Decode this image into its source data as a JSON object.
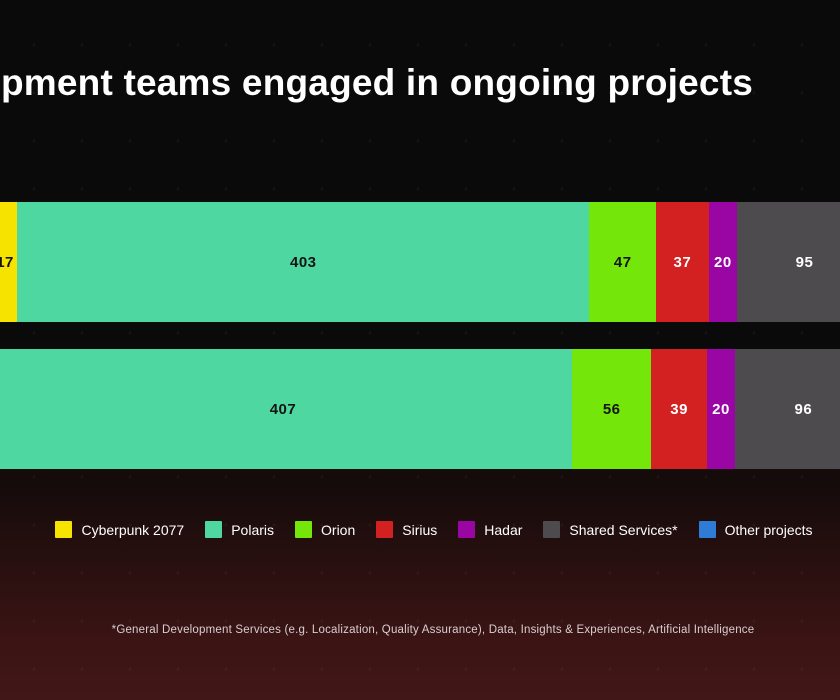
{
  "page": {
    "title": "pment teams engaged in ongoing projects",
    "footnote": "*General Development Services (e.g. Localization, Quality Assurance), Data, Insights & Experiences, Artificial Intelligence"
  },
  "colors": {
    "background_top": "#0a0a0a",
    "background_bottom": "#421717",
    "title_text": "#ffffff",
    "legend_text": "#ffffff",
    "footnote_text": "#d8cfcf"
  },
  "chart_data": {
    "type": "bar",
    "variant": "horizontal-stacked",
    "title": "pment teams engaged in ongoing projects",
    "legend_position": "bottom",
    "grid": false,
    "clipping_note": "Both stacked bars are clipped at the left and right edges of the visible area; the 'Other projects' series is visible only in the legend.",
    "series": [
      {
        "name": "Cyberpunk 2077",
        "color": "#f6e400",
        "label_color": "#141414"
      },
      {
        "name": "Polaris",
        "color": "#4fd7a2",
        "label_color": "#141414"
      },
      {
        "name": "Orion",
        "color": "#74e60a",
        "label_color": "#141414"
      },
      {
        "name": "Sirius",
        "color": "#d32021",
        "label_color": "#ffffff"
      },
      {
        "name": "Hadar",
        "color": "#9a06a3",
        "label_color": "#ffffff"
      },
      {
        "name": "Shared Services*",
        "color": "#4e4b4e",
        "label_color": "#ffffff"
      },
      {
        "name": "Other projects",
        "color": "#2e7cd6",
        "label_color": "#ffffff"
      }
    ],
    "bars": [
      {
        "segments": [
          {
            "series": "Cyberpunk 2077",
            "value": 17,
            "label": "17"
          },
          {
            "series": "Polaris",
            "value": 403,
            "label": "403"
          },
          {
            "series": "Orion",
            "value": 47,
            "label": "47"
          },
          {
            "series": "Sirius",
            "value": 37,
            "label": "37"
          },
          {
            "series": "Hadar",
            "value": 20,
            "label": "20"
          },
          {
            "series": "Shared Services*",
            "value": 95,
            "label": "95"
          }
        ]
      },
      {
        "segments": [
          {
            "series": "Polaris",
            "value": 407,
            "label": "407"
          },
          {
            "series": "Orion",
            "value": 56,
            "label": "56"
          },
          {
            "series": "Sirius",
            "value": 39,
            "label": "39"
          },
          {
            "series": "Hadar",
            "value": 20,
            "label": "20"
          },
          {
            "series": "Shared Services*",
            "value": 96,
            "label": "96"
          }
        ]
      }
    ]
  }
}
